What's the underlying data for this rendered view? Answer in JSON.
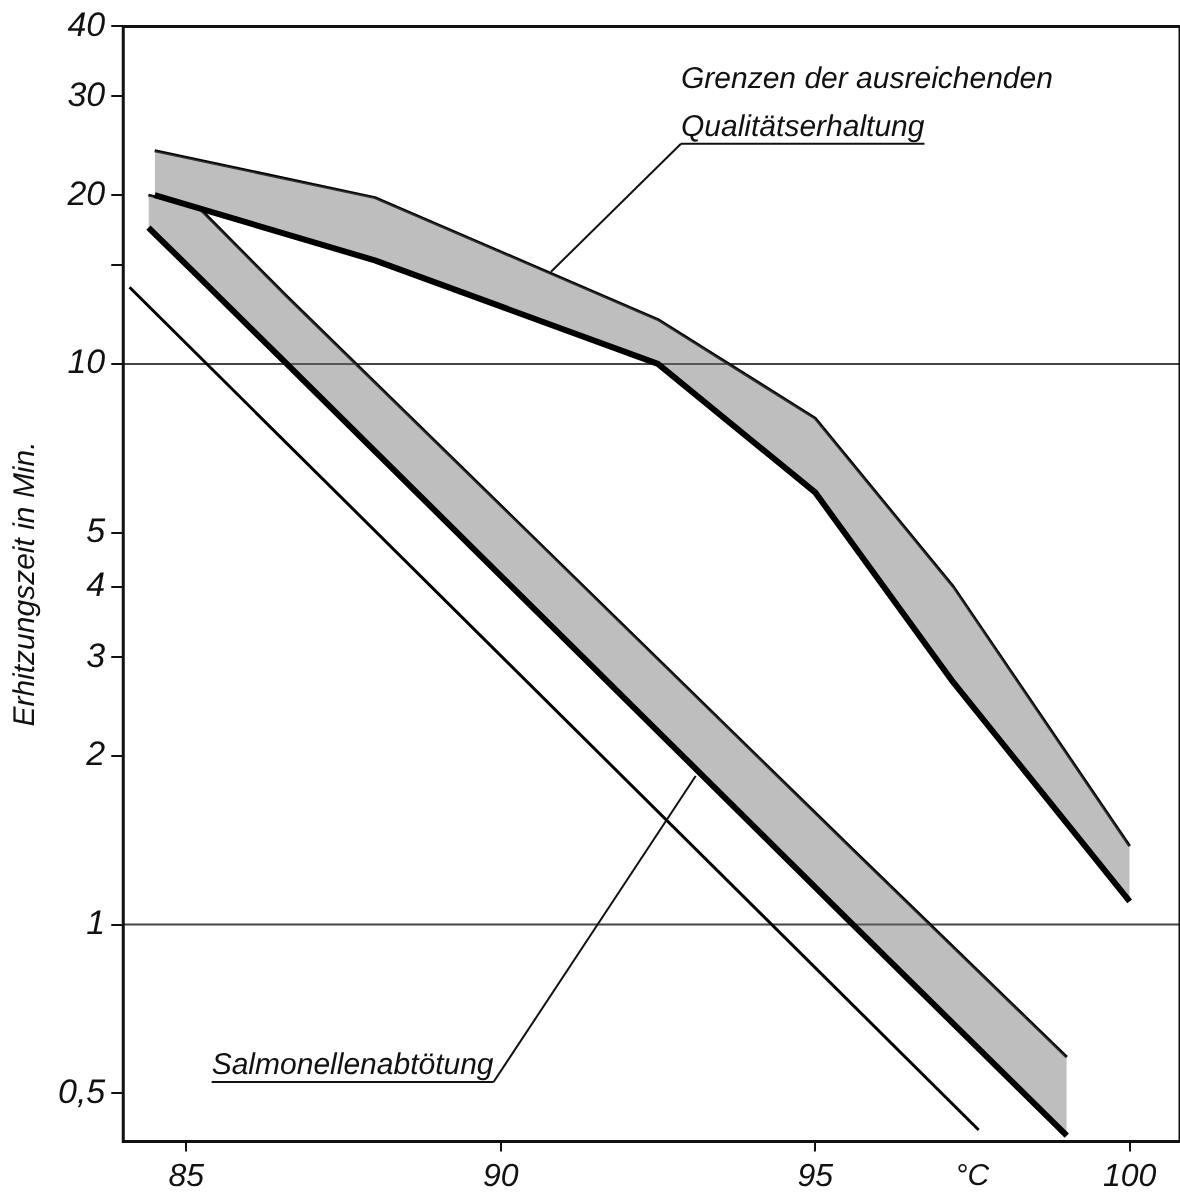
{
  "chart_data": {
    "type": "line",
    "xlabel": "°C",
    "ylabel": "Erhitzungszeit in Min.",
    "log": "y",
    "xlim": [
      84,
      100.8
    ],
    "ylim": [
      0.41,
      40
    ],
    "xticks": [
      85,
      90,
      95,
      100
    ],
    "yticks": [
      {
        "value": 0.5,
        "label": "0,5"
      },
      1,
      2,
      3,
      4,
      5,
      10,
      {
        "value": 15,
        "label": null
      },
      20,
      30,
      40
    ],
    "grid": false,
    "marker": "none",
    "series": [
      {
        "color": "#000000",
        "x": [
          84.5,
          88,
          92.5,
          95,
          97.2,
          100
        ],
        "values": [
          20,
          15.3,
          10,
          5.9,
          2.7,
          1.1
        ],
        "lower": [
          20,
          15.3,
          10,
          5.9,
          2.7,
          1.1
        ],
        "upper": [
          24,
          19.8,
          12,
          8,
          4,
          1.38
        ]
      },
      {
        "color": "#000000",
        "x": [
          84.4,
          85.2,
          86.6,
          95.6,
          99
        ],
        "values": [
          17.5,
          14.3,
          10,
          1,
          0.42
        ],
        "lower": [
          17.5,
          14.3,
          10,
          1,
          0.42
        ],
        "upper": [
          20,
          19,
          13.2,
          1.36,
          0.58
        ]
      },
      {
        "color": "#000000",
        "x": [
          84.1,
          97.6
        ],
        "values": [
          13.7,
          0.43
        ]
      },
      {
        "color": "#000000",
        "x": [
          84.5,
          88,
          92.5,
          95,
          97.2,
          100
        ],
        "values": [
          24,
          19.8,
          12,
          8,
          4,
          1.38
        ]
      },
      {
        "color": "#000000",
        "x": [
          84.4,
          85.2,
          86.6,
          95.6,
          99
        ],
        "values": [
          20,
          19,
          13.2,
          1.36,
          0.58
        ]
      }
    ],
    "ref_lines": [
      {
        "axis": "y",
        "value": 1
      },
      {
        "axis": "y",
        "value": 10
      }
    ],
    "annotations": [
      {
        "text": "Grenzen der ausreichenden Qualitätserhaltung",
        "x": 90.8,
        "y": 14.6
      },
      {
        "text": "Salmonellenabtötung",
        "x": 93.1,
        "y": 1.84
      }
    ]
  }
}
